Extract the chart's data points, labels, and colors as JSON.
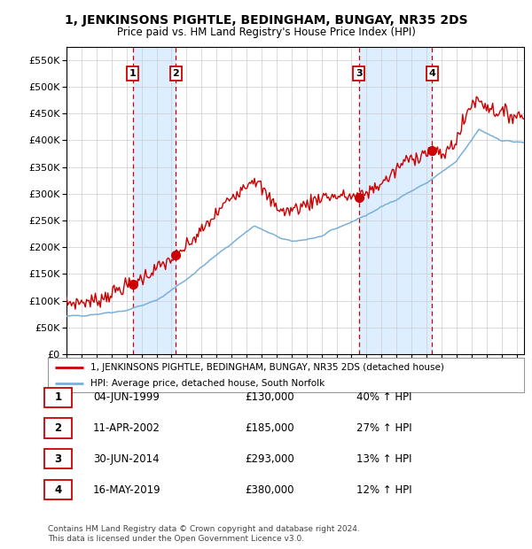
{
  "title": "1, JENKINSONS PIGHTLE, BEDINGHAM, BUNGAY, NR35 2DS",
  "subtitle": "Price paid vs. HM Land Registry's House Price Index (HPI)",
  "xlim": [
    1995.0,
    2025.5
  ],
  "ylim": [
    0,
    575000
  ],
  "yticks": [
    0,
    50000,
    100000,
    150000,
    200000,
    250000,
    300000,
    350000,
    400000,
    450000,
    500000,
    550000
  ],
  "sale_color": "#cc0000",
  "hpi_line_color": "#7ab0d8",
  "background_color": "#ffffff",
  "shading_color": "#dceeff",
  "grid_color": "#cccccc",
  "sale_points": [
    {
      "date_decimal": 1999.42,
      "price": 130000,
      "label": "1"
    },
    {
      "date_decimal": 2002.28,
      "price": 185000,
      "label": "2"
    },
    {
      "date_decimal": 2014.49,
      "price": 293000,
      "label": "3"
    },
    {
      "date_decimal": 2019.37,
      "price": 380000,
      "label": "4"
    }
  ],
  "table_rows": [
    {
      "num": "1",
      "date": "04-JUN-1999",
      "price": "£130,000",
      "hpi": "40% ↑ HPI"
    },
    {
      "num": "2",
      "date": "11-APR-2002",
      "price": "£185,000",
      "hpi": "27% ↑ HPI"
    },
    {
      "num": "3",
      "date": "30-JUN-2014",
      "price": "£293,000",
      "hpi": "13% ↑ HPI"
    },
    {
      "num": "4",
      "date": "16-MAY-2019",
      "price": "£380,000",
      "hpi": "12% ↑ HPI"
    }
  ],
  "legend_label_red": "1, JENKINSONS PIGHTLE, BEDINGHAM, BUNGAY, NR35 2DS (detached house)",
  "legend_label_blue": "HPI: Average price, detached house, South Norfolk",
  "footer": "Contains HM Land Registry data © Crown copyright and database right 2024.\nThis data is licensed under the Open Government Licence v3.0."
}
